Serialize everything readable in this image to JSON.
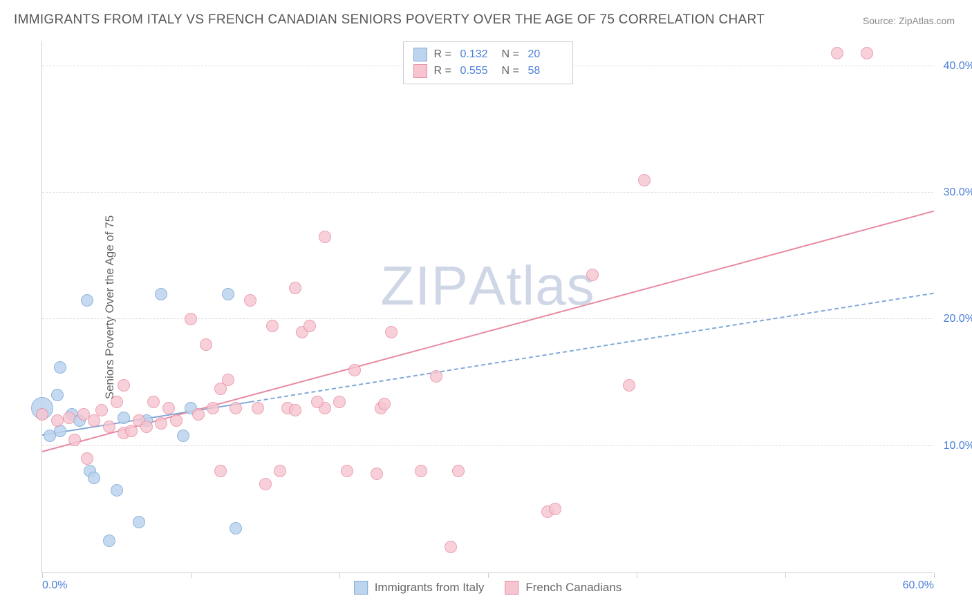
{
  "title": "IMMIGRANTS FROM ITALY VS FRENCH CANADIAN SENIORS POVERTY OVER THE AGE OF 75 CORRELATION CHART",
  "source": "Source: ZipAtlas.com",
  "watermark_a": "ZIP",
  "watermark_b": "Atlas",
  "chart": {
    "type": "scatter",
    "ylabel": "Seniors Poverty Over the Age of 75",
    "xlim": [
      0,
      60
    ],
    "ylim": [
      0,
      42
    ],
    "background_color": "#ffffff",
    "grid_color": "#dddddd",
    "axis_color": "#cccccc",
    "tick_label_color": "#4a7fd8",
    "label_color": "#666666",
    "title_color": "#555555",
    "title_fontsize": 19,
    "label_fontsize": 17,
    "tick_fontsize": 16,
    "ygrid": [
      10,
      20,
      30,
      40
    ],
    "ytick_labels": [
      "10.0%",
      "20.0%",
      "30.0%",
      "40.0%"
    ],
    "xticks": [
      0,
      10,
      20,
      30,
      40,
      50,
      60
    ],
    "xtick_labels": [
      "0.0%",
      "",
      "",
      "",
      "",
      "",
      "60.0%"
    ],
    "series": [
      {
        "name": "Immigrants from Italy",
        "fill": "#bcd4ee",
        "stroke": "#7fa9d8",
        "r_label": "R =",
        "r_value": "0.132",
        "n_label": "N =",
        "n_value": "20",
        "marker_radius": 9,
        "marker_opacity": 0.85,
        "big_marker_radius": 16,
        "trend": {
          "x1": 0,
          "y1": 10.8,
          "x2": 60,
          "y2": 22.0,
          "width": 2.2,
          "dash": "6,5",
          "solid_until_x": 14
        },
        "points": [
          {
            "x": 0.0,
            "y": 13.0,
            "big": true
          },
          {
            "x": 0.5,
            "y": 10.8
          },
          {
            "x": 1.0,
            "y": 14.0
          },
          {
            "x": 1.2,
            "y": 11.2
          },
          {
            "x": 1.2,
            "y": 16.2
          },
          {
            "x": 2.0,
            "y": 12.5
          },
          {
            "x": 2.5,
            "y": 12.0
          },
          {
            "x": 3.0,
            "y": 21.5
          },
          {
            "x": 3.2,
            "y": 8.0
          },
          {
            "x": 3.5,
            "y": 7.5
          },
          {
            "x": 4.5,
            "y": 2.5
          },
          {
            "x": 5.0,
            "y": 6.5
          },
          {
            "x": 5.5,
            "y": 12.2
          },
          {
            "x": 6.5,
            "y": 4.0
          },
          {
            "x": 7.0,
            "y": 12.0
          },
          {
            "x": 8.0,
            "y": 22.0
          },
          {
            "x": 9.5,
            "y": 10.8
          },
          {
            "x": 10.0,
            "y": 13.0
          },
          {
            "x": 12.5,
            "y": 22.0
          },
          {
            "x": 13.0,
            "y": 3.5
          }
        ]
      },
      {
        "name": "French Canadians",
        "fill": "#f6c5d0",
        "stroke": "#e88ba1",
        "r_label": "R =",
        "r_value": "0.555",
        "n_label": "N =",
        "n_value": "58",
        "marker_radius": 9,
        "marker_opacity": 0.8,
        "trend": {
          "x1": 0,
          "y1": 9.5,
          "x2": 60,
          "y2": 28.5,
          "width": 2.6,
          "dash": null
        },
        "points": [
          {
            "x": 0.0,
            "y": 12.5
          },
          {
            "x": 1.0,
            "y": 12.0
          },
          {
            "x": 1.8,
            "y": 12.2
          },
          {
            "x": 2.2,
            "y": 10.5
          },
          {
            "x": 2.8,
            "y": 12.5
          },
          {
            "x": 3.0,
            "y": 9.0
          },
          {
            "x": 3.5,
            "y": 12.0
          },
          {
            "x": 4.0,
            "y": 12.8
          },
          {
            "x": 4.5,
            "y": 11.5
          },
          {
            "x": 5.0,
            "y": 13.5
          },
          {
            "x": 5.5,
            "y": 11.0
          },
          {
            "x": 5.5,
            "y": 14.8
          },
          {
            "x": 6.0,
            "y": 11.2
          },
          {
            "x": 6.5,
            "y": 12.0
          },
          {
            "x": 7.0,
            "y": 11.5
          },
          {
            "x": 7.5,
            "y": 13.5
          },
          {
            "x": 8.5,
            "y": 13.0
          },
          {
            "x": 9.0,
            "y": 12.0
          },
          {
            "x": 10.0,
            "y": 20.0
          },
          {
            "x": 10.5,
            "y": 12.5
          },
          {
            "x": 11.0,
            "y": 18.0
          },
          {
            "x": 12.0,
            "y": 14.5
          },
          {
            "x": 12.0,
            "y": 8.0
          },
          {
            "x": 12.5,
            "y": 15.2
          },
          {
            "x": 13.0,
            "y": 13.0
          },
          {
            "x": 14.0,
            "y": 21.5
          },
          {
            "x": 14.5,
            "y": 13.0
          },
          {
            "x": 15.0,
            "y": 7.0
          },
          {
            "x": 15.5,
            "y": 19.5
          },
          {
            "x": 16.0,
            "y": 8.0
          },
          {
            "x": 16.5,
            "y": 13.0
          },
          {
            "x": 17.0,
            "y": 22.5
          },
          {
            "x": 17.5,
            "y": 19.0
          },
          {
            "x": 18.0,
            "y": 19.5
          },
          {
            "x": 19.0,
            "y": 26.5
          },
          {
            "x": 19.0,
            "y": 13.0
          },
          {
            "x": 20.0,
            "y": 13.5
          },
          {
            "x": 20.5,
            "y": 8.0
          },
          {
            "x": 21.0,
            "y": 16.0
          },
          {
            "x": 22.5,
            "y": 7.8
          },
          {
            "x": 22.8,
            "y": 13.0
          },
          {
            "x": 23.0,
            "y": 13.3
          },
          {
            "x": 23.5,
            "y": 19.0
          },
          {
            "x": 25.5,
            "y": 8.0
          },
          {
            "x": 26.5,
            "y": 15.5
          },
          {
            "x": 27.5,
            "y": 2.0
          },
          {
            "x": 28.0,
            "y": 8.0
          },
          {
            "x": 34.0,
            "y": 4.8
          },
          {
            "x": 34.5,
            "y": 5.0
          },
          {
            "x": 37.0,
            "y": 23.5
          },
          {
            "x": 39.5,
            "y": 14.8
          },
          {
            "x": 40.5,
            "y": 31.0
          },
          {
            "x": 53.5,
            "y": 41.0
          },
          {
            "x": 55.5,
            "y": 41.0
          },
          {
            "x": 17.0,
            "y": 12.8
          },
          {
            "x": 18.5,
            "y": 13.5
          },
          {
            "x": 11.5,
            "y": 13.0
          },
          {
            "x": 8.0,
            "y": 11.8
          }
        ]
      }
    ]
  }
}
